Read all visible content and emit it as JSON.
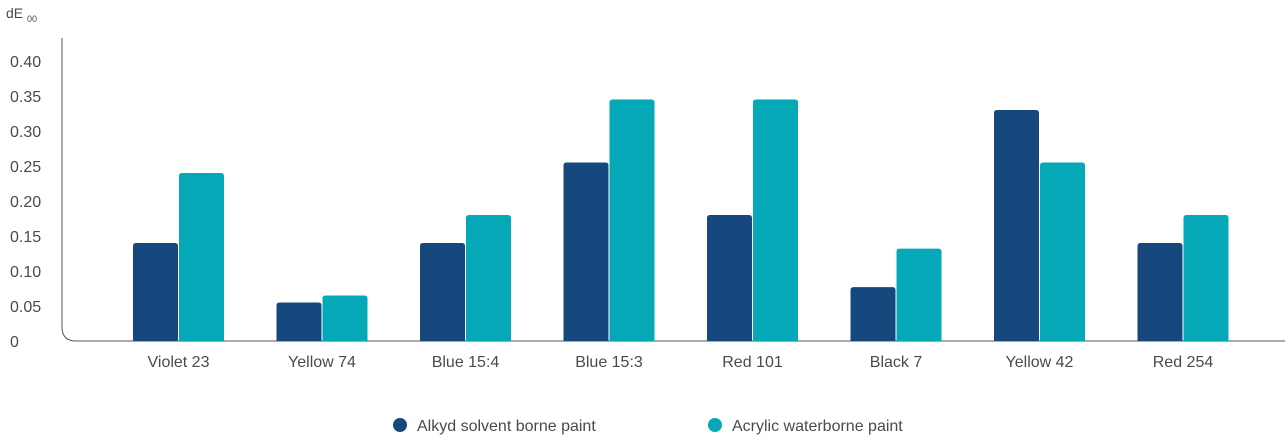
{
  "chart_data": {
    "type": "bar",
    "ylabel_main": "dE",
    "ylabel_sub": "00",
    "xlabel": "",
    "ylim": [
      0,
      0.4
    ],
    "y_ticks": [
      "0",
      "0.05",
      "0.10",
      "0.15",
      "0.20",
      "0.25",
      "0.30",
      "0.35",
      "0.40"
    ],
    "y_tick_values": [
      0,
      0.05,
      0.1,
      0.15,
      0.2,
      0.25,
      0.3,
      0.35,
      0.4
    ],
    "categories": [
      "Violet 23",
      "Yellow 74",
      "Blue 15:4",
      "Blue 15:3",
      "Red 101",
      "Black 7",
      "Yellow 42",
      "Red 254"
    ],
    "series": [
      {
        "name": "Alkyd solvent borne paint",
        "color": "#16477d",
        "values": [
          0.14,
          0.055,
          0.14,
          0.255,
          0.18,
          0.077,
          0.33,
          0.14
        ]
      },
      {
        "name": "Acrylic waterborne paint",
        "color": "#05a8b7",
        "values": [
          0.24,
          0.065,
          0.18,
          0.345,
          0.345,
          0.132,
          0.255,
          0.18
        ]
      }
    ],
    "grid": false,
    "legend_position": "bottom-center"
  }
}
